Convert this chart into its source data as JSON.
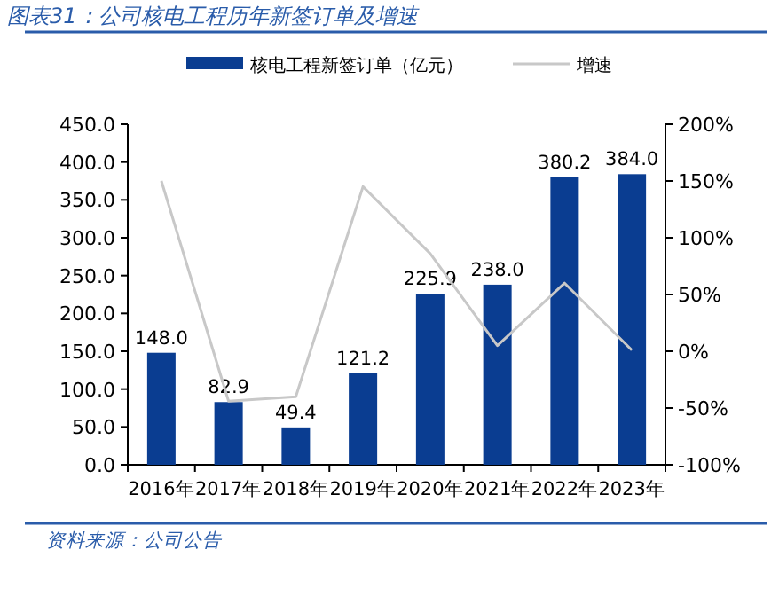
{
  "chart_data": {
    "type": "bar",
    "title": "图表31：公司核电工程历年新签订单及增速",
    "categories": [
      "2016年",
      "2017年",
      "2018年",
      "2019年",
      "2020年",
      "2021年",
      "2022年",
      "2023年"
    ],
    "series": [
      {
        "name": "核电工程新签订单（亿元）",
        "color": "#0a3d91",
        "values": [
          148.0,
          82.9,
          49.4,
          121.2,
          225.9,
          238.0,
          380.2,
          384.0
        ],
        "value_labels": [
          "148.0",
          "82.9",
          "49.4",
          "121.2",
          "225.9",
          "238.0",
          "380.2",
          "384.0"
        ]
      },
      {
        "name": "增速",
        "type": "line",
        "axis": "y2",
        "color": "#c8c8c8",
        "values": [
          150,
          -44,
          -40,
          145,
          86,
          5,
          60,
          1
        ]
      }
    ],
    "ylim": [
      0,
      450
    ],
    "yticks": [
      {
        "value": 0,
        "label": "0.0"
      },
      {
        "value": 50,
        "label": "50.0"
      },
      {
        "value": 100,
        "label": "100.0"
      },
      {
        "value": 150,
        "label": "150.0"
      },
      {
        "value": 200,
        "label": "200.0"
      },
      {
        "value": 250,
        "label": "250.0"
      },
      {
        "value": 300,
        "label": "300.0"
      },
      {
        "value": 350,
        "label": "350.0"
      },
      {
        "value": 400,
        "label": "400.0"
      },
      {
        "value": 450,
        "label": "450.0"
      }
    ],
    "y2lim": [
      -100,
      200
    ],
    "y2ticks": [
      {
        "value": -100,
        "label": "-100%"
      },
      {
        "value": -50,
        "label": "-50%"
      },
      {
        "value": 0,
        "label": "0%"
      },
      {
        "value": 50,
        "label": "50%"
      },
      {
        "value": 100,
        "label": "100%"
      },
      {
        "value": 150,
        "label": "150%"
      },
      {
        "value": 200,
        "label": "200%"
      }
    ],
    "legend": "top",
    "grid": false,
    "annotations": [
      "资料来源：公司公告"
    ]
  }
}
